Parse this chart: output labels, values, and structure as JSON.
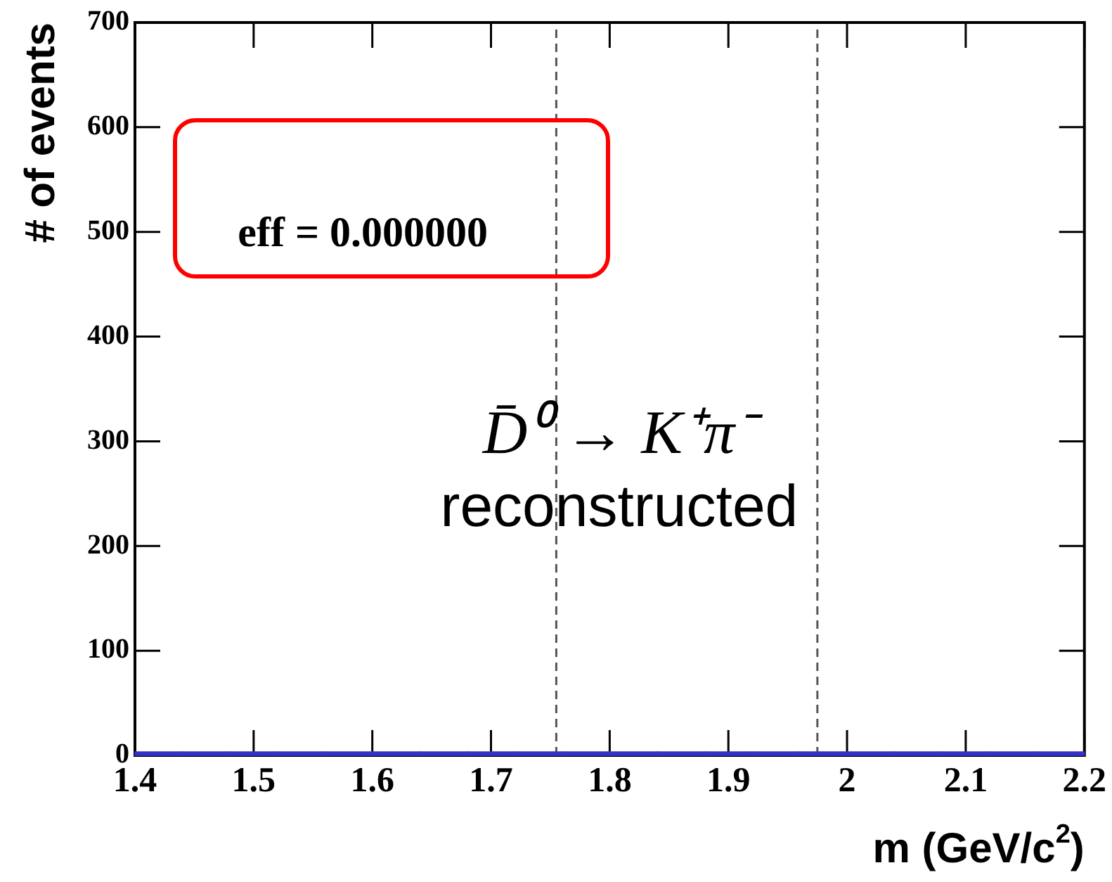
{
  "chart_data": {
    "type": "histogram",
    "xlabel": "m (GeV/c$^{2}$)",
    "ylabel": "# of events",
    "bins": [
      1.4,
      1.44,
      1.48,
      1.52,
      1.56,
      1.6,
      1.64,
      1.68,
      1.72,
      1.76,
      1.8,
      1.84,
      1.88,
      1.92,
      1.96,
      2.0,
      2.04,
      2.08,
      2.12,
      2.16,
      2.2
    ],
    "values": [
      0,
      0,
      0,
      0,
      0,
      0,
      0,
      0,
      0,
      0,
      0,
      0,
      0,
      0,
      0,
      0,
      0,
      0,
      0,
      0
    ],
    "color": "#3333cc",
    "xlim": [
      1.4,
      2.2
    ],
    "xticks": [
      1.4,
      1.5,
      1.6,
      1.7,
      1.8,
      1.9,
      2,
      2.1,
      2.2
    ],
    "ylim": [
      0,
      700
    ],
    "yticks": [
      0,
      100,
      200,
      300,
      400,
      500,
      600,
      700
    ],
    "ref_lines": [
      {
        "axis": "x",
        "value": 1.755,
        "color": "#555555",
        "line_style": "dashed"
      },
      {
        "axis": "x",
        "value": 1.975,
        "color": "#555555",
        "line_style": "dashed"
      }
    ],
    "annotations": [
      "eff = 0.000000",
      "D̄⁰ → K⁺π⁻",
      "reconstructed"
    ],
    "grid": false,
    "legend": false
  }
}
